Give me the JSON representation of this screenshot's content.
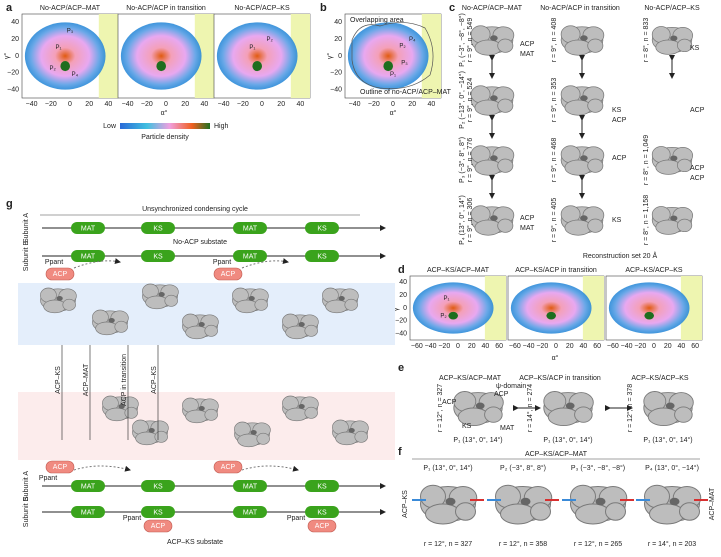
{
  "a": {
    "label": "a",
    "titles": [
      "No-ACP/ACP–MAT",
      "No-ACP/ACP in transition",
      "No-ACP/ACP–KS"
    ],
    "xticks": [
      "−40",
      "−20",
      "0",
      "20",
      "40"
    ],
    "yticks": [
      "40",
      "20",
      "0",
      "−20",
      "−40"
    ],
    "xlabel": "α°",
    "ylabel": "γ°",
    "points": [
      "P₁",
      "P₂",
      "P₃",
      "P₄"
    ],
    "colorbar": {
      "low": "Low",
      "title": "Particle density",
      "high": "High"
    }
  },
  "b": {
    "label": "b",
    "overlap": "Overlapping area",
    "outline": "Outline of no-ACP/ACP–MAT",
    "xticks": [
      "−40",
      "−20",
      "0",
      "20",
      "40"
    ],
    "yticks": [
      "40",
      "20",
      "0",
      "−20",
      "−40"
    ],
    "xlabel": "α°",
    "ylabel": "γ°",
    "points": [
      "P₁",
      "P₂",
      "P₃",
      "P₄"
    ]
  },
  "c": {
    "label": "c",
    "columns": [
      "No-ACP/ACP–MAT",
      "No-ACP/ACP in transition",
      "No-ACP/ACP–KS"
    ],
    "rows": [
      {
        "left": "P₁ (−3°, −8°, −8°)",
        "left_stats": "r = 9°, n = 549",
        "middle_stats": "r = 9°, n = 408"
      },
      {
        "left": "P₂ (−13°, 0°, −14°)",
        "left_stats": "r = 9°, n = 524",
        "middle_stats": "r = 9°, n = 353"
      },
      {
        "left": "P₃ (−3°, 8°, 8°)",
        "left_stats": "r = 9°, n = 776",
        "middle_stats": "r = 9°, n = 468"
      },
      {
        "left": "P₄ (13°, 0°, 14°)",
        "left_stats": "r = 9°, n = 306",
        "middle_stats": "r = 9°, n = 405"
      }
    ],
    "right_stats": [
      "r = 8°, n = 833",
      "r = 8°, n = 1,049",
      "r = 8°, n = 1,158"
    ],
    "tags": [
      "ACP",
      "MAT",
      "ACP",
      "KS",
      "ACP",
      "ACP",
      "KS",
      "ACP",
      "ACP",
      "KS",
      "ACP",
      "MAT"
    ],
    "footer": "Reconstruction set 20 Å"
  },
  "d": {
    "label": "d",
    "titles": [
      "ACP–KS/ACP–MAT",
      "ACP–KS/ACP in transition",
      "ACP–KS/ACP–KS"
    ],
    "xticks": [
      "−60",
      "−40",
      "−20",
      "0",
      "20",
      "40",
      "60"
    ],
    "yticks": [
      "40",
      "20",
      "0",
      "−20",
      "−40"
    ],
    "xlabel": "α°",
    "ylabel": "γ°",
    "points": [
      "P₁",
      "P₂"
    ]
  },
  "e": {
    "label": "e",
    "titles": [
      "ACP–KS/ACP–MAT",
      "ACP–KS/ACP in transition",
      "ACP–KS/ACP–KS"
    ],
    "stats": [
      "r = 12°, n = 327",
      "r = 14°, n = 274",
      "r = 12°, n = 378"
    ],
    "positions": [
      "P₁ (13°, 0°, 14°)",
      "P₁ (13°, 0°, 14°)",
      "P₁ (13°, 0°, 14°)"
    ],
    "tags": [
      "ψ-domain",
      "ACP",
      "ACP",
      "KS",
      "MAT"
    ]
  },
  "f": {
    "label": "f",
    "title": "ACP–KS/ACP–MAT",
    "positions": [
      "P₁ (13°, 0°, 14°)",
      "P₂ (−3°, 8°, 8°)",
      "P₃ (−3°, −8°, −8°)",
      "P₄ (13°, 0°, −14°)"
    ],
    "stats": [
      "r = 12°, n = 327",
      "r = 12°, n = 358",
      "r = 12°, n = 265",
      "r = 14°, n = 203"
    ],
    "left": "ACP–KS",
    "right": "ACP–MAT"
  },
  "g": {
    "label": "g",
    "title": "Unsynchronized condensing cycle",
    "top_substate": "No-ACP substate",
    "bottom_substate": "ACP–KS substate",
    "subunit_a": "Subunit A",
    "subunit_b": "Subunit B",
    "top_domains": [
      "MAT",
      "KS",
      "MAT",
      "KS"
    ],
    "bottom_domains": [
      "MAT",
      "KS",
      "MAT",
      "KS"
    ],
    "acp": "ACP",
    "ppant": "Ppant",
    "transitions": [
      "ACP–KS",
      "ACP–MAT",
      "ACP in transition",
      "ACP–KS"
    ]
  }
}
